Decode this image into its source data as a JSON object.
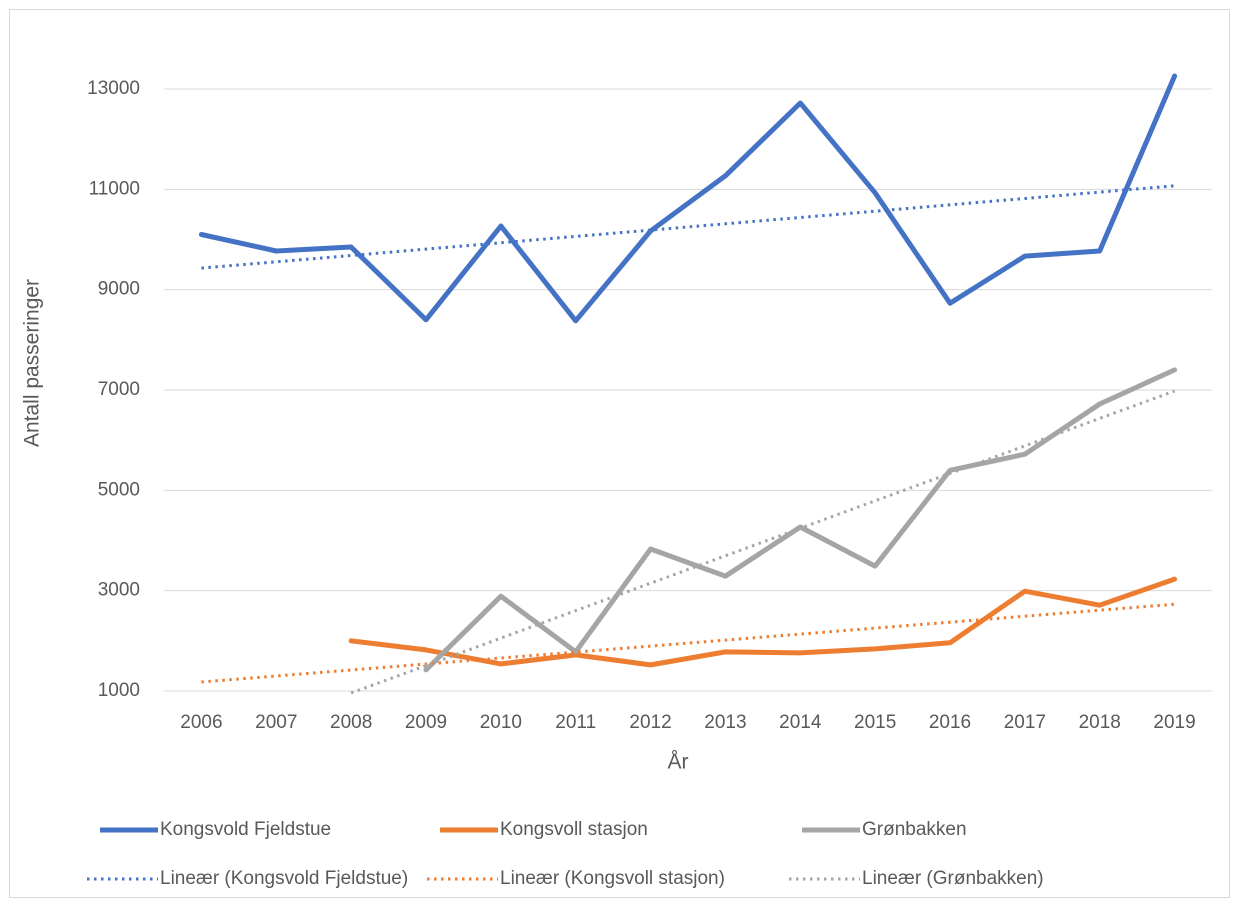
{
  "chart_data": {
    "type": "line",
    "x_label": "År",
    "y_label": "Antall passeringer",
    "categories": [
      "2006",
      "2007",
      "2008",
      "2009",
      "2010",
      "2011",
      "2012",
      "2013",
      "2014",
      "2015",
      "2016",
      "2017",
      "2018",
      "2019"
    ],
    "series": [
      {
        "name": "Kongsvold Fjeldstue",
        "color": "#4472c4",
        "style": "solid",
        "values": [
          10100,
          9770,
          9850,
          8400,
          10270,
          8380,
          10170,
          11270,
          12720,
          10930,
          8730,
          9670,
          9770,
          13260
        ]
      },
      {
        "name": "Kongsvoll stasjon",
        "color": "#ed7d31",
        "style": "solid",
        "values": [
          null,
          null,
          2000,
          1820,
          1540,
          1720,
          1520,
          1780,
          1760,
          1840,
          1960,
          2990,
          2710,
          3230
        ]
      },
      {
        "name": "Grønbakken",
        "color": "#a5a5a5",
        "style": "solid",
        "values": [
          null,
          null,
          null,
          1420,
          2890,
          1780,
          3830,
          3290,
          4270,
          3490,
          5400,
          5720,
          6720,
          7400
        ]
      },
      {
        "name": "Lineær (Kongsvold Fjeldstue)",
        "color": "#4472c4",
        "style": "dotted",
        "values": [
          9430,
          9556,
          9682,
          9808,
          9935,
          10061,
          10187,
          10313,
          10439,
          10565,
          10692,
          10818,
          10944,
          11070
        ]
      },
      {
        "name": "Lineær (Kongsvoll stasjon)",
        "color": "#ed7d31",
        "style": "dotted",
        "values": [
          1180,
          1299,
          1418,
          1538,
          1657,
          1776,
          1895,
          2015,
          2134,
          2253,
          2372,
          2492,
          2611,
          2730
        ]
      },
      {
        "name": "Lineær (Grønbakken)",
        "color": "#a5a5a5",
        "style": "dotted",
        "values": [
          null,
          null,
          960,
          1507,
          2055,
          2602,
          3149,
          3696,
          4244,
          4791,
          5338,
          5885,
          6433,
          6980
        ]
      }
    ],
    "ylim": [
      1000,
      13000
    ],
    "yticks": [
      1000,
      3000,
      5000,
      7000,
      9000,
      11000,
      13000
    ],
    "grid": true,
    "legend": "bottom"
  }
}
